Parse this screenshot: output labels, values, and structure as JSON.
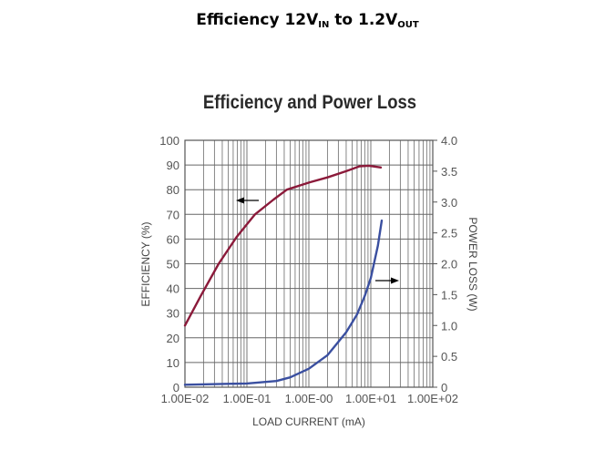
{
  "slide": {
    "title_main": "Efficiency 12V",
    "title_sub1": "IN",
    "title_mid": " to 1.2V",
    "title_sub2": "OUT"
  },
  "chart_data": {
    "type": "line",
    "title": "Efficiency and Power Loss",
    "xlabel": "LOAD CURRENT (mA)",
    "ylabel": "EFFICIENCY (%)",
    "y2label": "POWER LOSS (W)",
    "xscale": "log",
    "xlim": [
      0.01,
      100
    ],
    "ylim": [
      0,
      100
    ],
    "y2lim": [
      0,
      4.0
    ],
    "grid": true,
    "x_tick_labels": [
      "1.00E-02",
      "1.00E-01",
      "1.00E-00",
      "1.00E+01",
      "1.00E+02"
    ],
    "y_tick_labels": [
      "0",
      "10",
      "20",
      "30",
      "40",
      "50",
      "60",
      "70",
      "80",
      "90",
      "100"
    ],
    "y2_tick_labels": [
      "0",
      "0.5",
      "1.0",
      "1.5",
      "2.0",
      "2.5",
      "3.0",
      "3.5",
      "4.0"
    ],
    "series": [
      {
        "name": "Efficiency",
        "axis": "left",
        "color": "#8b1a3a",
        "x": [
          0.01,
          0.018,
          0.035,
          0.069,
          0.135,
          0.27,
          0.44,
          1.03,
          2.0,
          4.0,
          6.6,
          9.3,
          14.5
        ],
        "values": [
          25,
          37,
          50,
          61,
          70,
          76,
          80,
          83,
          85,
          87.5,
          89.5,
          89.7,
          89
        ]
      },
      {
        "name": "Power Loss",
        "axis": "right",
        "color": "#3a4fa0",
        "x": [
          0.01,
          0.1,
          0.3,
          0.5,
          1.0,
          2.0,
          4.0,
          6.0,
          8.0,
          10,
          13,
          15
        ],
        "values": [
          0.04,
          0.06,
          0.1,
          0.16,
          0.3,
          0.52,
          0.89,
          1.18,
          1.48,
          1.77,
          2.29,
          2.7
        ]
      }
    ],
    "annotations": [
      {
        "type": "arrow",
        "direction": "left",
        "target": "Efficiency",
        "note": "arrow pointing to left axis"
      },
      {
        "type": "arrow",
        "direction": "right",
        "target": "Power Loss",
        "note": "arrow pointing to right axis"
      }
    ]
  }
}
